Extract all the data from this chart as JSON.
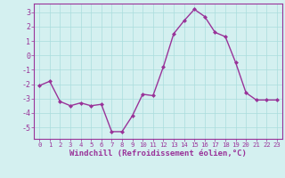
{
  "x": [
    0,
    1,
    2,
    3,
    4,
    5,
    6,
    7,
    8,
    9,
    10,
    11,
    12,
    13,
    14,
    15,
    16,
    17,
    18,
    19,
    20,
    21,
    22,
    23
  ],
  "y": [
    -2.1,
    -1.8,
    -3.2,
    -3.5,
    -3.3,
    -3.5,
    -3.4,
    -5.3,
    -5.3,
    -4.2,
    -2.7,
    -2.8,
    -0.8,
    1.5,
    2.4,
    3.2,
    2.7,
    1.6,
    1.3,
    -0.5,
    -2.6,
    -3.1,
    -3.1,
    -3.1
  ],
  "line_color": "#993399",
  "marker": "D",
  "marker_size": 2,
  "bg_color": "#d4f0f0",
  "grid_color": "#aadddd",
  "xlabel": "Windchill (Refroidissement éolien,°C)",
  "xlabel_color": "#993399",
  "tick_color": "#993399",
  "ylim": [
    -5.8,
    3.6
  ],
  "yticks": [
    -5,
    -4,
    -3,
    -2,
    -1,
    0,
    1,
    2,
    3
  ],
  "xticks": [
    0,
    1,
    2,
    3,
    4,
    5,
    6,
    7,
    8,
    9,
    10,
    11,
    12,
    13,
    14,
    15,
    16,
    17,
    18,
    19,
    20,
    21,
    22,
    23
  ],
  "axis_color": "#993399",
  "linewidth": 1.0,
  "xlabel_fontsize": 6.5,
  "xtick_fontsize": 5.2,
  "ytick_fontsize": 6.0,
  "spine_color": "#993399",
  "bottom_spine_color": "#993399"
}
